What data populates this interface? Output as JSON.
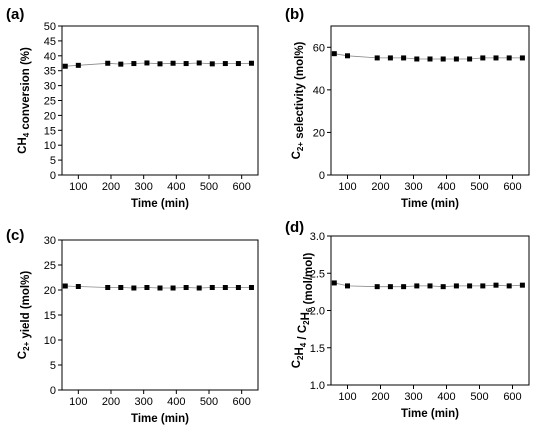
{
  "chart_data": [
    {
      "panel_label": "(a)",
      "type": "line",
      "xlabel": "Time (min)",
      "ylabel_parts": [
        [
          "CH",
          "normal"
        ],
        [
          "4",
          "sub"
        ],
        [
          " conversion (%)",
          "normal"
        ]
      ],
      "xlim": [
        50,
        650
      ],
      "ylim": [
        0,
        50
      ],
      "xticks": [
        100,
        200,
        300,
        400,
        500,
        600
      ],
      "yticks": [
        0,
        5,
        10,
        15,
        20,
        25,
        30,
        35,
        40,
        45,
        50
      ],
      "x": [
        60,
        100,
        190,
        230,
        270,
        310,
        350,
        390,
        430,
        470,
        510,
        550,
        590,
        630
      ],
      "series": [
        {
          "values": [
            36.5,
            36.8,
            37.5,
            37.2,
            37.4,
            37.6,
            37.3,
            37.5,
            37.4,
            37.6,
            37.3,
            37.4,
            37.4,
            37.5
          ]
        }
      ]
    },
    {
      "panel_label": "(b)",
      "type": "line",
      "xlabel": "Time (min)",
      "ylabel_parts": [
        [
          "C",
          "normal"
        ],
        [
          "2+",
          "sub"
        ],
        [
          " selectivity (mol%)",
          "normal"
        ]
      ],
      "xlim": [
        50,
        650
      ],
      "ylim": [
        0,
        70
      ],
      "xticks": [
        100,
        200,
        300,
        400,
        500,
        600
      ],
      "yticks": [
        0,
        20,
        40,
        60
      ],
      "x": [
        60,
        100,
        190,
        230,
        270,
        310,
        350,
        390,
        430,
        470,
        510,
        550,
        590,
        630
      ],
      "series": [
        {
          "values": [
            57,
            56,
            55,
            55,
            55,
            54.5,
            54.5,
            54.5,
            54.5,
            54.5,
            55,
            55,
            55,
            55
          ]
        }
      ]
    },
    {
      "panel_label": "(c)",
      "type": "line",
      "xlabel": "Time (min)",
      "ylabel_parts": [
        [
          "C",
          "normal"
        ],
        [
          "2+",
          "sub"
        ],
        [
          " yield (mol%)",
          "normal"
        ]
      ],
      "xlim": [
        50,
        650
      ],
      "ylim": [
        0,
        30
      ],
      "xticks": [
        100,
        200,
        300,
        400,
        500,
        600
      ],
      "yticks": [
        0,
        5,
        10,
        15,
        20,
        25,
        30
      ],
      "x": [
        60,
        100,
        190,
        230,
        270,
        310,
        350,
        390,
        430,
        470,
        510,
        550,
        590,
        630
      ],
      "series": [
        {
          "values": [
            20.8,
            20.7,
            20.5,
            20.5,
            20.4,
            20.5,
            20.4,
            20.4,
            20.5,
            20.4,
            20.5,
            20.5,
            20.5,
            20.5
          ]
        }
      ]
    },
    {
      "panel_label": "(d)",
      "type": "line",
      "xlabel": "Time (min)",
      "ylabel_parts": [
        [
          "C",
          "normal"
        ],
        [
          "2",
          "sub"
        ],
        [
          "H",
          "normal"
        ],
        [
          "4",
          "sub"
        ],
        [
          " / C",
          "normal"
        ],
        [
          "2",
          "sub"
        ],
        [
          "H",
          "normal"
        ],
        [
          "6",
          "sub"
        ],
        [
          " (mol/mol)",
          "normal"
        ]
      ],
      "xlim": [
        50,
        650
      ],
      "ylim": [
        1.0,
        3.0
      ],
      "xticks": [
        100,
        200,
        300,
        400,
        500,
        600
      ],
      "yticks": [
        1.0,
        1.5,
        2.0,
        2.5,
        3.0
      ],
      "ytick_decimals": 1,
      "x": [
        60,
        100,
        190,
        230,
        270,
        310,
        350,
        390,
        430,
        470,
        510,
        550,
        590,
        630
      ],
      "series": [
        {
          "values": [
            2.37,
            2.33,
            2.32,
            2.32,
            2.32,
            2.33,
            2.33,
            2.32,
            2.33,
            2.33,
            2.33,
            2.34,
            2.33,
            2.34
          ]
        }
      ]
    }
  ]
}
